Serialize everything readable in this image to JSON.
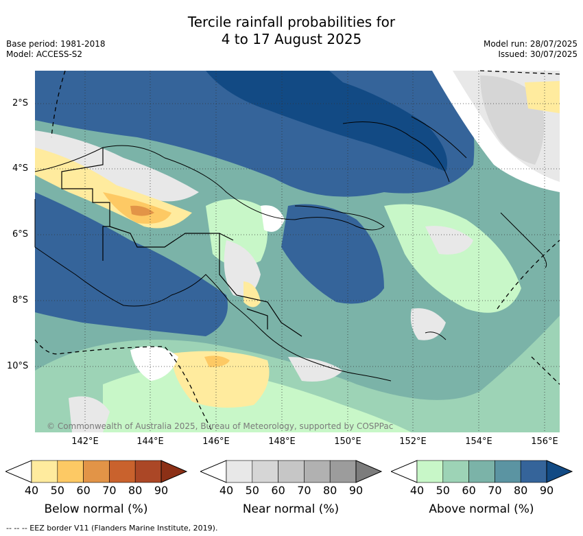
{
  "title": {
    "line1": "Tercile rainfall probabilities for",
    "line2": "4 to 17 August 2025"
  },
  "meta": {
    "base_period": "Base period: 1981-2018",
    "model": "Model: ACCESS-S2",
    "model_run": "Model run: 28/07/2025",
    "issued": "Issued: 30/07/2025"
  },
  "map": {
    "lat_labels": [
      "2°S",
      "4°S",
      "6°S",
      "8°S",
      "10°S"
    ],
    "lon_labels": [
      "142°E",
      "144°E",
      "146°E",
      "148°E",
      "150°E",
      "152°E",
      "154°E",
      "156°E"
    ],
    "copyright": "© Commonwealth of Australia 2025, Bureau of Meteorology, supported by COSPPac",
    "colors": {
      "above": [
        "#c8f7c8",
        "#9dd3b6",
        "#7bb3a8",
        "#5b94a2",
        "#35649a",
        "#124a84"
      ],
      "near": [
        "#e8e8e8",
        "#d6d6d6",
        "#c6c6c6",
        "#b1b1b1",
        "#9c9c9c",
        "#7c7c7c"
      ],
      "below": [
        "#ffeb9e",
        "#fdc964",
        "#e29447",
        "#c9622d",
        "#ab4726",
        "#8c3016"
      ]
    }
  },
  "colorbars": [
    {
      "title": "Below normal (%)",
      "ticks": [
        "40",
        "50",
        "60",
        "70",
        "80",
        "90"
      ],
      "colors": [
        "#ffeb9e",
        "#fdc964",
        "#e29447",
        "#c9622d",
        "#ab4726",
        "#8c3016"
      ]
    },
    {
      "title": "Near normal (%)",
      "ticks": [
        "40",
        "50",
        "60",
        "70",
        "80",
        "90"
      ],
      "colors": [
        "#e8e8e8",
        "#d6d6d6",
        "#c6c6c6",
        "#b1b1b1",
        "#9c9c9c",
        "#7c7c7c"
      ]
    },
    {
      "title": "Above normal (%)",
      "ticks": [
        "40",
        "50",
        "60",
        "70",
        "80",
        "90"
      ],
      "colors": [
        "#c8f7c8",
        "#9dd3b6",
        "#7bb3a8",
        "#5b94a2",
        "#35649a",
        "#124a84"
      ]
    }
  ],
  "footer": "-- -- -- EEZ border V11 (Flanders Marine Institute, 2019)."
}
